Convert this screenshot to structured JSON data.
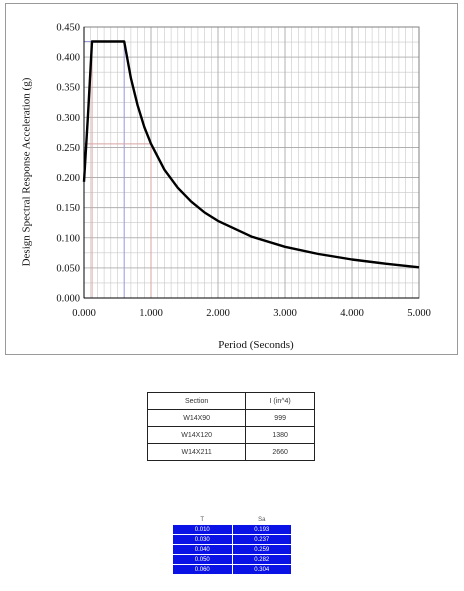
{
  "chart_data": {
    "type": "line",
    "title": "",
    "xlabel": "Period (Seconds)",
    "ylabel": "Design Spectral Response Acceleration (g)",
    "xlim": [
      0,
      5
    ],
    "ylim": [
      0,
      0.45
    ],
    "grid": true,
    "x_ticks": [
      "0.000",
      "1.000",
      "2.000",
      "3.000",
      "4.000",
      "5.000"
    ],
    "y_ticks": [
      "0.000",
      "0.050",
      "0.100",
      "0.150",
      "0.200",
      "0.250",
      "0.300",
      "0.350",
      "0.400",
      "0.450"
    ],
    "series": [
      {
        "x": [
          0,
          0.06,
          0.12,
          0.6,
          0.7,
          0.8,
          0.9,
          1.0,
          1.2,
          1.4,
          1.6,
          1.8,
          2.0,
          2.5,
          3.0,
          3.5,
          4.0,
          4.5,
          5.0
        ],
        "y": [
          0.193,
          0.304,
          0.426,
          0.426,
          0.365,
          0.32,
          0.284,
          0.256,
          0.213,
          0.183,
          0.16,
          0.142,
          0.128,
          0.102,
          0.085,
          0.073,
          0.064,
          0.057,
          0.051
        ]
      }
    ],
    "guide_lines": [
      {
        "x": 0.12,
        "y": 0.426,
        "color": "#d9a3a3"
      },
      {
        "x": 0.6,
        "y": 0.426,
        "color": "#9a9adf"
      },
      {
        "x": 1.0,
        "y": 0.256,
        "color": "#d9a3a3"
      }
    ],
    "colors": {
      "curve": "#000000",
      "grid": "#c8c8c8",
      "axis": "#000000"
    }
  },
  "section_table": {
    "headers": [
      "Section",
      "I (in^4)"
    ],
    "rows": [
      [
        "W14X90",
        "999"
      ],
      [
        "W14X120",
        "1380"
      ],
      [
        "W14X211",
        "2660"
      ]
    ]
  },
  "tsa_table": {
    "headers": [
      "T",
      "Sa"
    ],
    "rows": [
      [
        "0.010",
        "0.193"
      ],
      [
        "0.030",
        "0.237"
      ],
      [
        "0.040",
        "0.259"
      ],
      [
        "0.050",
        "0.282"
      ],
      [
        "0.060",
        "0.304"
      ]
    ],
    "cell_color": "#0a12e6"
  }
}
